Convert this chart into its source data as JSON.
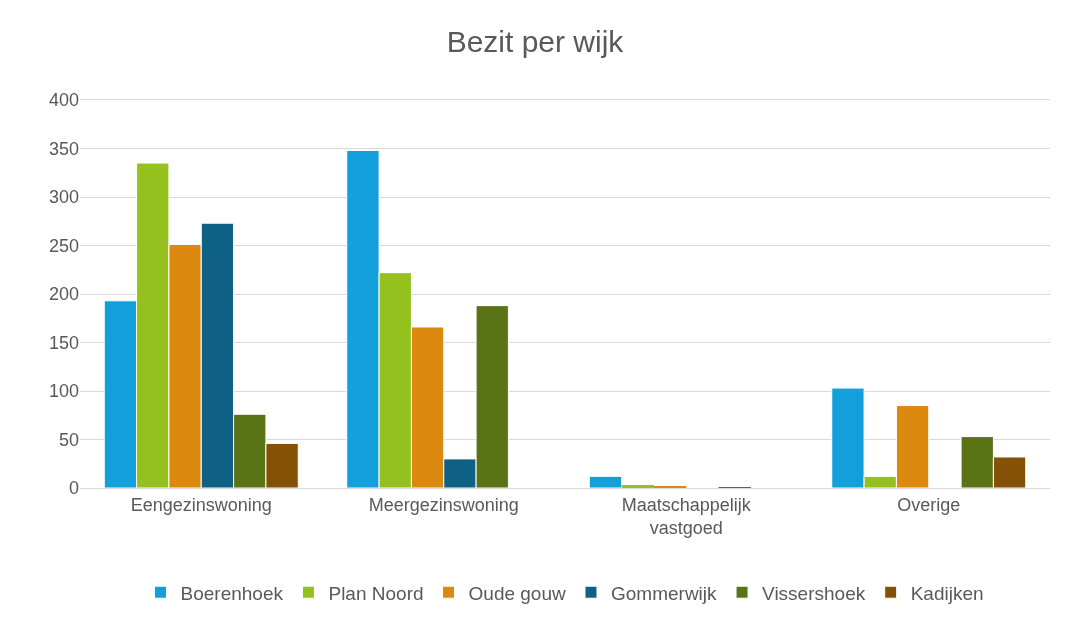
{
  "chart_data": {
    "type": "bar",
    "title": "Bezit per wijk",
    "categories": [
      "Eengezinswoning",
      "Meergezinswoning",
      "Maatschappelijk vastgoed",
      "Overige"
    ],
    "series": [
      {
        "name": "Boerenhoek",
        "color": "#129fdb",
        "values": [
          193,
          348,
          12,
          103
        ]
      },
      {
        "name": "Plan Noord",
        "color": "#95c11f",
        "values": [
          335,
          222,
          3,
          12
        ]
      },
      {
        "name": "Oude gouw",
        "color": "#dc8a0f",
        "values": [
          251,
          166,
          2,
          85
        ]
      },
      {
        "name": "Gommerwijk",
        "color": "#0e6084",
        "values": [
          273,
          30,
          0,
          0
        ]
      },
      {
        "name": "Vissershoek",
        "color": "#5a7314",
        "values": [
          76,
          188,
          1,
          53
        ]
      },
      {
        "name": "Kadijken",
        "color": "#845206",
        "values": [
          46,
          0,
          0,
          32
        ]
      }
    ],
    "ylim": [
      0,
      400
    ],
    "yticks": [
      0,
      50,
      100,
      150,
      200,
      250,
      300,
      350,
      400
    ],
    "grid": "y",
    "legend": "bottom"
  }
}
